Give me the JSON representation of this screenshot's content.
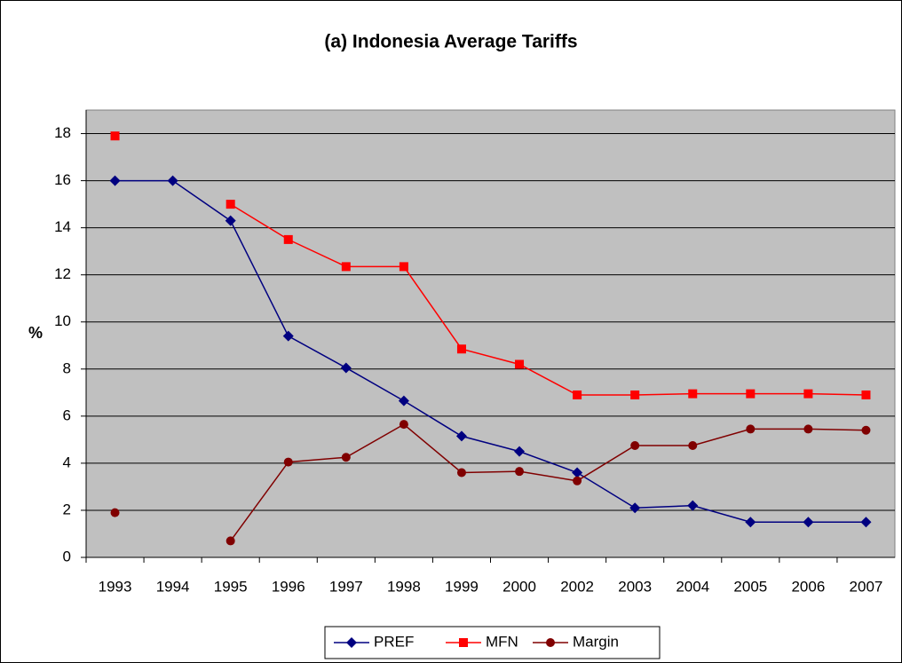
{
  "chart_data": {
    "type": "line",
    "title": "(a) Indonesia Average Tariffs",
    "y_label": "%",
    "categories": [
      "1993",
      "1994",
      "1995",
      "1996",
      "1997",
      "1998",
      "1999",
      "2000",
      "2002",
      "2003",
      "2004",
      "2005",
      "2006",
      "2007"
    ],
    "series": [
      {
        "name": "PREF",
        "color": "#000080",
        "marker": "diamond",
        "values": [
          16,
          16,
          14.3,
          9.4,
          8.05,
          6.65,
          5.15,
          4.5,
          3.6,
          2.1,
          2.2,
          1.5,
          1.5,
          1.5
        ]
      },
      {
        "name": "MFN",
        "color": "#ff0000",
        "marker": "square",
        "values": [
          17.9,
          null,
          15.0,
          13.5,
          12.35,
          12.35,
          8.85,
          8.2,
          6.9,
          6.9,
          6.95,
          6.95,
          6.95,
          6.9
        ]
      },
      {
        "name": "Margin",
        "color": "#800000",
        "marker": "circle",
        "values": [
          1.9,
          null,
          0.7,
          4.05,
          4.25,
          5.65,
          3.6,
          3.65,
          3.25,
          4.75,
          4.75,
          5.45,
          5.45,
          5.4
        ]
      }
    ],
    "ylim": [
      0,
      19
    ],
    "yticks": [
      0,
      2,
      4,
      6,
      8,
      10,
      12,
      14,
      16,
      18
    ],
    "grid": true,
    "legend": "bottom"
  }
}
